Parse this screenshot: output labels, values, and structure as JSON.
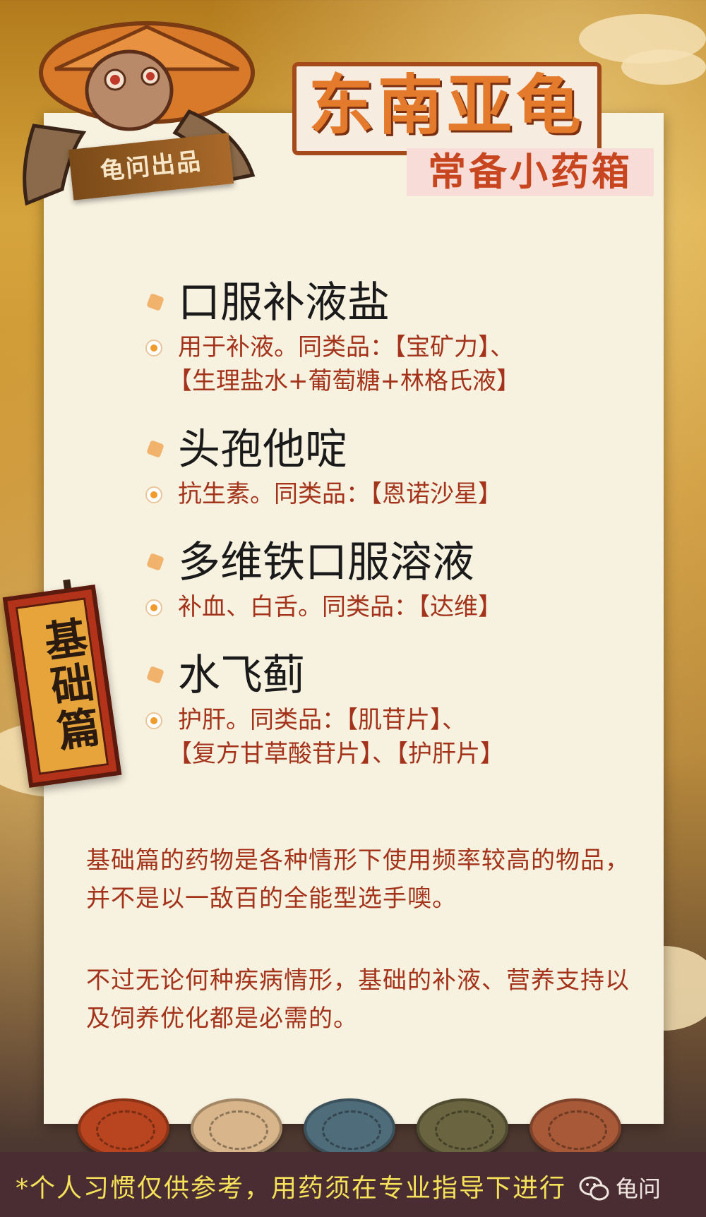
{
  "brand_badge": "龟问出品",
  "title": "东南亚龟",
  "subtitle": "常备小药箱",
  "side_banner": "基础篇",
  "items": [
    {
      "name": "口服补液盐",
      "desc_line1": "用于补液。同类品：【宝矿力】、",
      "desc_line2": "【生理盐水+葡萄糖+林格氏液】"
    },
    {
      "name": "头孢他啶",
      "desc_line1": "抗生素。同类品：【恩诺沙星】",
      "desc_line2": ""
    },
    {
      "name": "多维铁口服溶液",
      "desc_line1": "补血、白舌。同类品：【达维】",
      "desc_line2": ""
    },
    {
      "name": "水飞蓟",
      "desc_line1": "护肝。同类品：【肌苷片】、",
      "desc_line2": "【复方甘草酸苷片】、【护肝片】"
    }
  ],
  "paragraph1": "基础篇的药物是各种情形下使用频率较高的物品，并不是以一敌百的全能型选手噢。",
  "paragraph2": "不过无论何种疾病情形，基础的补液、营养支持以及饲养优化都是必需的。",
  "footer_note": "*个人习惯仅供参考，用药须在专业指导下进行",
  "footer_brand": "龟问",
  "colors": {
    "accent_red": "#a3341b",
    "title_orange": "#e37a2c",
    "footer_yellow": "#f5e15a",
    "paper": "#f7f1e0"
  },
  "icons": [
    "turtle-illustration",
    "wechat-icon",
    "bullet-diamond-icon",
    "bullet-circle-icon",
    "turtle-shell-icon"
  ]
}
